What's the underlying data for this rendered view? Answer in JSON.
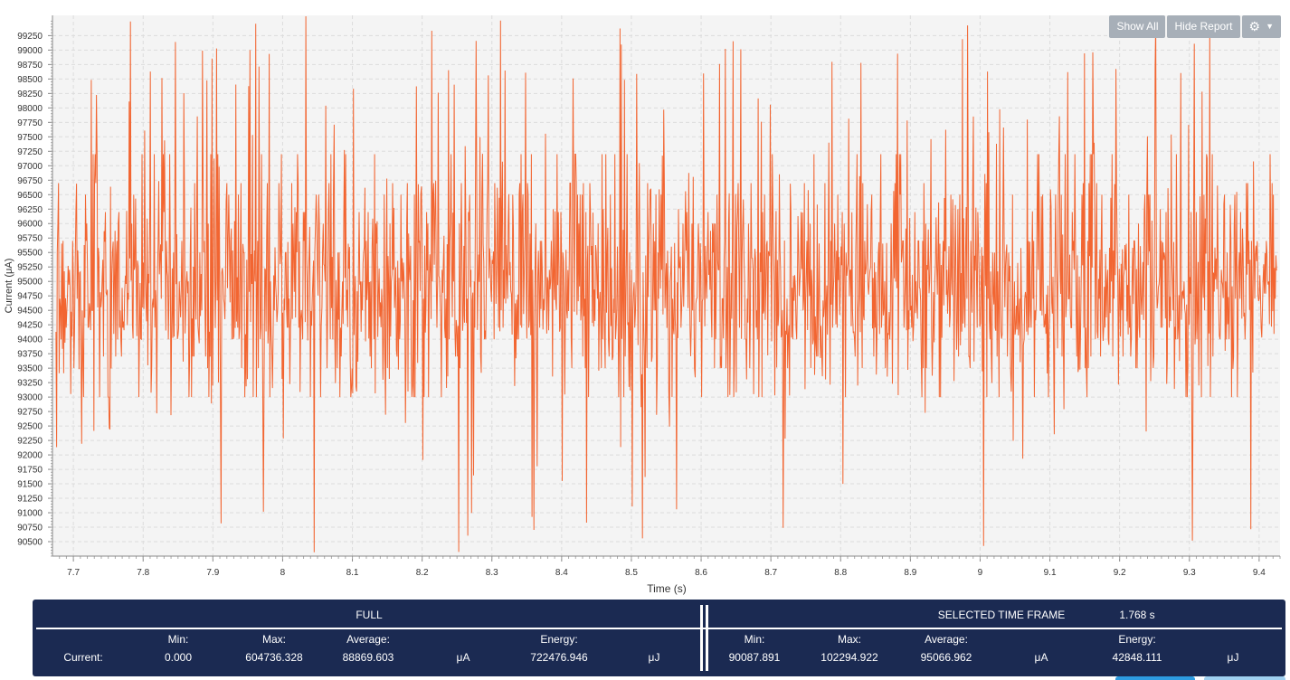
{
  "chart_data": {
    "type": "line",
    "xlabel": "Time (s)",
    "ylabel": "Current (μA)",
    "xlim": [
      7.67,
      9.43
    ],
    "ylim": [
      90250,
      99600
    ],
    "x_ticks": [
      "7.7",
      "7.8",
      "7.9",
      "8",
      "8.1",
      "8.2",
      "8.3",
      "8.4",
      "8.5",
      "8.6",
      "8.7",
      "8.8",
      "8.9",
      "9",
      "9.1",
      "9.2",
      "9.3",
      "9.4"
    ],
    "y_ticks": [
      "90500",
      "90750",
      "91000",
      "91250",
      "91500",
      "91750",
      "92000",
      "92250",
      "92500",
      "92750",
      "93000",
      "93250",
      "93500",
      "93750",
      "94000",
      "94250",
      "94500",
      "94750",
      "95000",
      "95250",
      "95500",
      "95750",
      "96000",
      "96250",
      "96500",
      "96750",
      "97000",
      "97250",
      "97500",
      "97750",
      "98000",
      "98250",
      "98500",
      "98750",
      "99000",
      "99250"
    ],
    "series": [
      {
        "color": "#f26531",
        "baseline_range": [
          93000,
          96700
        ],
        "dense_band": [
          94000,
          95700
        ],
        "min_visible": 90300,
        "max_visible": 99600
      }
    ],
    "grid": true
  },
  "toolbar": {
    "show_all": "Show All",
    "hide_report": "Hide Report",
    "settings_icon": "gear-icon",
    "dropdown_icon": "caret-down-icon"
  },
  "report": {
    "full_title": "FULL",
    "selected_title": "SELECTED TIME FRAME",
    "selected_duration": "1.768 s",
    "row_label": "Current:",
    "labels": {
      "min": "Min:",
      "max": "Max:",
      "average": "Average:",
      "energy": "Energy:"
    },
    "full": {
      "min": "0.000",
      "max": "604736.328",
      "average": "88869.603",
      "avg_unit": "μA",
      "energy": "722476.946",
      "energy_unit": "μJ"
    },
    "selected": {
      "min": "90087.891",
      "max": "102294.922",
      "average": "95066.962",
      "avg_unit": "μA",
      "energy": "42848.111",
      "energy_unit": "μJ"
    }
  },
  "colors": {
    "accent": "#f26531",
    "report_bg": "#1b2a52",
    "plot_bg": "#f4f4f4",
    "button_bg": "#a7afb8"
  }
}
